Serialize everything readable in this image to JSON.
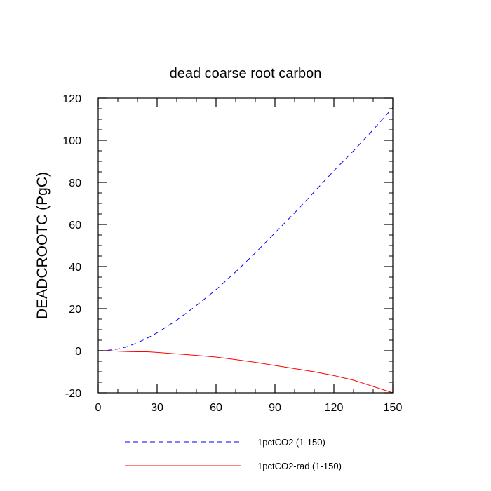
{
  "chart_data": {
    "type": "line",
    "title": "dead coarse root carbon",
    "xlabel": "",
    "ylabel": "DEADCROOTC  (PgC)",
    "xlim": [
      0,
      150
    ],
    "ylim": [
      -20,
      120
    ],
    "xticks": [
      0,
      30,
      60,
      90,
      120,
      150
    ],
    "yticks": [
      -20,
      0,
      20,
      40,
      60,
      80,
      100,
      120
    ],
    "x_minor_step": 10,
    "y_minor_step": 5,
    "grid": false,
    "legend_position": "bottom",
    "series": [
      {
        "name": "1pctCO2 (1-150)",
        "color": "#0000ff",
        "dash": "dashed",
        "x": [
          0,
          5,
          10,
          15,
          20,
          25,
          30,
          40,
          50,
          60,
          70,
          80,
          90,
          100,
          110,
          120,
          130,
          140,
          150
        ],
        "y": [
          0,
          0.2,
          0.8,
          2.0,
          3.8,
          6.0,
          8.5,
          14.5,
          21.5,
          29.0,
          37.5,
          46.5,
          56.0,
          65.5,
          75.5,
          85.5,
          95.0,
          105.0,
          115.5
        ]
      },
      {
        "name": "1pctCO2-rad (1-150)",
        "color": "#ff0000",
        "dash": "solid",
        "x": [
          0,
          5,
          10,
          15,
          20,
          25,
          30,
          40,
          50,
          60,
          70,
          80,
          90,
          100,
          110,
          120,
          130,
          140,
          150
        ],
        "y": [
          0,
          0,
          -0.2,
          -0.4,
          -0.5,
          -0.5,
          -0.8,
          -1.5,
          -2.2,
          -3.0,
          -4.2,
          -5.5,
          -7.0,
          -8.5,
          -10.0,
          -11.8,
          -14.0,
          -17.0,
          -20.0
        ]
      }
    ]
  }
}
